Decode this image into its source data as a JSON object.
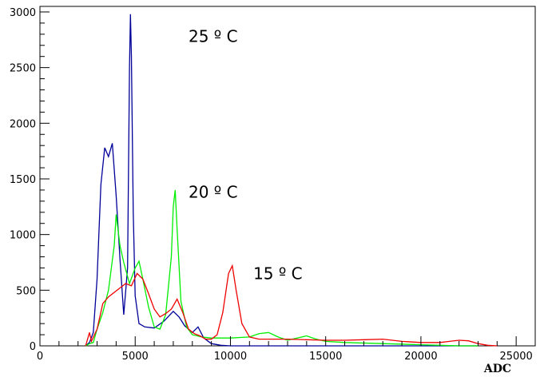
{
  "chart_data": {
    "type": "line",
    "title": "",
    "xlabel": "ADC",
    "ylabel": "",
    "xlim": [
      0,
      26000
    ],
    "ylim": [
      0,
      3050
    ],
    "grid": false,
    "x_ticks": [
      0,
      5000,
      10000,
      15000,
      20000,
      25000
    ],
    "x_tick_labels": [
      "0",
      "5000",
      "10000",
      "15000",
      "20000",
      "25000"
    ],
    "y_ticks": [
      0,
      500,
      1000,
      1500,
      2000,
      2500,
      3000
    ],
    "y_tick_labels": [
      "0",
      "500",
      "1000",
      "1500",
      "2000",
      "2500",
      "3000"
    ],
    "series": [
      {
        "name": "25 º C",
        "color": "#000099",
        "points": [
          [
            2400,
            0
          ],
          [
            2600,
            30
          ],
          [
            2800,
            120
          ],
          [
            3000,
            600
          ],
          [
            3200,
            1450
          ],
          [
            3400,
            1780
          ],
          [
            3600,
            1700
          ],
          [
            3800,
            1820
          ],
          [
            4000,
            1350
          ],
          [
            4200,
            780
          ],
          [
            4400,
            280
          ],
          [
            4600,
            700
          ],
          [
            4700,
            2500
          ],
          [
            4750,
            2980
          ],
          [
            4800,
            2600
          ],
          [
            4900,
            1200
          ],
          [
            5000,
            450
          ],
          [
            5200,
            200
          ],
          [
            5500,
            170
          ],
          [
            6000,
            160
          ],
          [
            6500,
            220
          ],
          [
            7000,
            310
          ],
          [
            7300,
            260
          ],
          [
            7600,
            180
          ],
          [
            8000,
            120
          ],
          [
            8300,
            170
          ],
          [
            8600,
            70
          ],
          [
            9000,
            20
          ],
          [
            9500,
            5
          ],
          [
            10000,
            0
          ],
          [
            11000,
            0
          ],
          [
            12000,
            0
          ],
          [
            14000,
            0
          ],
          [
            16000,
            0
          ],
          [
            18000,
            0
          ],
          [
            20000,
            0
          ],
          [
            22000,
            0
          ],
          [
            23000,
            0
          ]
        ]
      },
      {
        "name": "20 º C",
        "color": "#00ee00",
        "points": [
          [
            2400,
            0
          ],
          [
            2600,
            20
          ],
          [
            2800,
            30
          ],
          [
            3000,
            150
          ],
          [
            3300,
            300
          ],
          [
            3600,
            500
          ],
          [
            3900,
            900
          ],
          [
            4000,
            1180
          ],
          [
            4200,
            900
          ],
          [
            4400,
            750
          ],
          [
            4700,
            560
          ],
          [
            5000,
            700
          ],
          [
            5200,
            760
          ],
          [
            5400,
            600
          ],
          [
            5700,
            350
          ],
          [
            6000,
            170
          ],
          [
            6300,
            150
          ],
          [
            6600,
            280
          ],
          [
            6900,
            800
          ],
          [
            7000,
            1250
          ],
          [
            7100,
            1400
          ],
          [
            7200,
            1050
          ],
          [
            7400,
            400
          ],
          [
            7700,
            170
          ],
          [
            8000,
            100
          ],
          [
            8500,
            80
          ],
          [
            9000,
            70
          ],
          [
            10000,
            70
          ],
          [
            11000,
            80
          ],
          [
            11500,
            110
          ],
          [
            12000,
            120
          ],
          [
            12500,
            80
          ],
          [
            13000,
            50
          ],
          [
            13500,
            70
          ],
          [
            14000,
            90
          ],
          [
            14500,
            60
          ],
          [
            15000,
            40
          ],
          [
            16000,
            30
          ],
          [
            18000,
            20
          ],
          [
            20000,
            10
          ],
          [
            21000,
            5
          ],
          [
            22000,
            0
          ],
          [
            23000,
            0
          ]
        ]
      },
      {
        "name": "15 º C",
        "color": "#ee0000",
        "points": [
          [
            2400,
            0
          ],
          [
            2600,
            120
          ],
          [
            2700,
            40
          ],
          [
            3000,
            150
          ],
          [
            3300,
            380
          ],
          [
            3600,
            440
          ],
          [
            3900,
            480
          ],
          [
            4200,
            520
          ],
          [
            4500,
            560
          ],
          [
            4800,
            540
          ],
          [
            5100,
            650
          ],
          [
            5400,
            600
          ],
          [
            5700,
            470
          ],
          [
            6000,
            330
          ],
          [
            6300,
            260
          ],
          [
            6600,
            290
          ],
          [
            6900,
            330
          ],
          [
            7200,
            420
          ],
          [
            7500,
            300
          ],
          [
            7800,
            150
          ],
          [
            8100,
            110
          ],
          [
            8400,
            90
          ],
          [
            8700,
            60
          ],
          [
            9000,
            60
          ],
          [
            9300,
            100
          ],
          [
            9600,
            300
          ],
          [
            9900,
            650
          ],
          [
            10100,
            720
          ],
          [
            10300,
            500
          ],
          [
            10600,
            200
          ],
          [
            11000,
            80
          ],
          [
            11500,
            60
          ],
          [
            12000,
            60
          ],
          [
            13000,
            60
          ],
          [
            14000,
            55
          ],
          [
            15000,
            50
          ],
          [
            16000,
            50
          ],
          [
            17000,
            55
          ],
          [
            18000,
            60
          ],
          [
            19000,
            40
          ],
          [
            20000,
            30
          ],
          [
            21000,
            30
          ],
          [
            21500,
            40
          ],
          [
            22000,
            50
          ],
          [
            22500,
            45
          ],
          [
            23000,
            20
          ],
          [
            23500,
            5
          ],
          [
            24000,
            0
          ]
        ]
      }
    ],
    "annotations": [
      {
        "text": "25 º C",
        "x": 7800,
        "y": 2730
      },
      {
        "text": "20 º C",
        "x": 7800,
        "y": 1330
      },
      {
        "text": "15 º C",
        "x": 11200,
        "y": 600
      }
    ]
  }
}
